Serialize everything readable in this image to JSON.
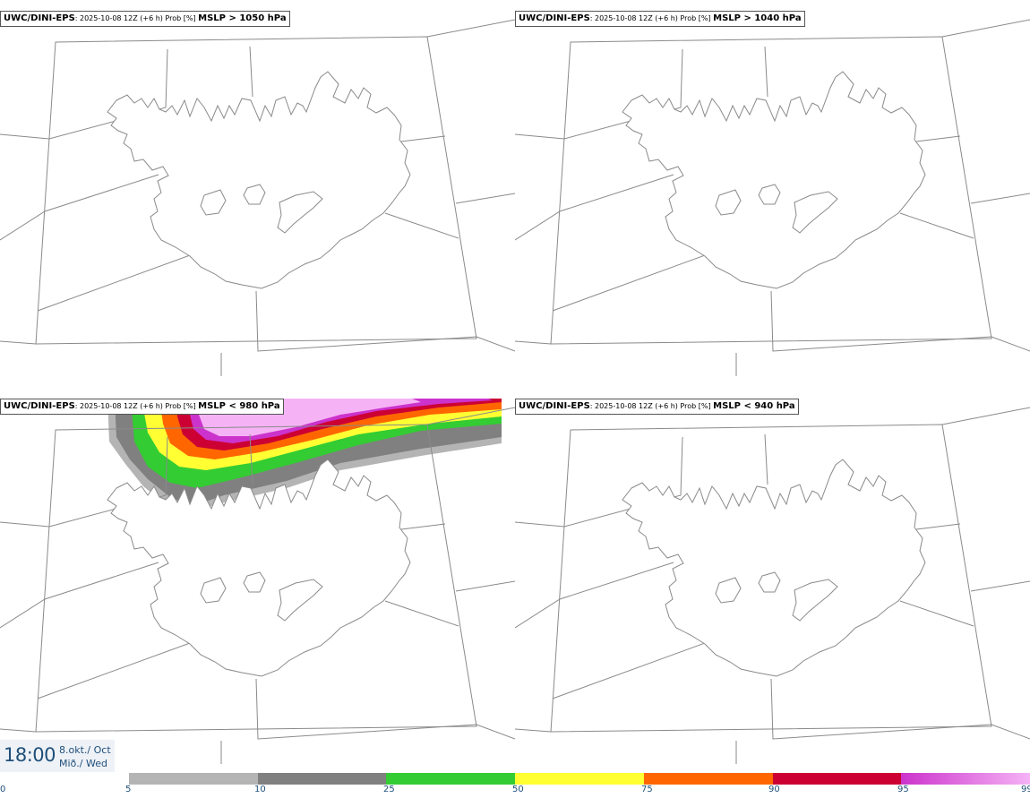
{
  "panels": [
    {
      "model": "UWC/DINI-EPS",
      "run": ": 2025-10-08 12Z (+6 h) Prob [%] ",
      "param": "MSLP > 1050 hPa",
      "colored": false
    },
    {
      "model": "UWC/DINI-EPS",
      "run": ": 2025-10-08 12Z (+6 h) Prob [%] ",
      "param": "MSLP > 1040 hPa",
      "colored": false
    },
    {
      "model": "UWC/DINI-EPS",
      "run": ": 2025-10-08 12Z (+6 h) Prob [%] ",
      "param": "MSLP < 980 hPa",
      "colored": true
    },
    {
      "model": "UWC/DINI-EPS",
      "run": ": 2025-10-08 12Z (+6 h) Prob [%] ",
      "param": "MSLP < 940 hPa",
      "colored": false
    }
  ],
  "time": {
    "clock": "18:00",
    "date_line1": "8.okt./ Oct",
    "date_line2": "Mið./ Wed"
  },
  "legend": {
    "ticks": [
      "0",
      "5",
      "10",
      "25",
      "50",
      "75",
      "90",
      "95",
      "99"
    ],
    "bins": [
      {
        "from": "5",
        "to": "10",
        "color": "#b4b4b4"
      },
      {
        "from": "10",
        "to": "25",
        "color": "#808080"
      },
      {
        "from": "25",
        "to": "50",
        "color": "#33cc33"
      },
      {
        "from": "50",
        "to": "75",
        "color": "#ffff33"
      },
      {
        "from": "75",
        "to": "90",
        "color": "#ff6600"
      },
      {
        "from": "90",
        "to": "95",
        "color": "#cc0033"
      },
      {
        "from": "95",
        "to": "99",
        "color": "#cc33cc",
        "color_end": "#f5b3f5"
      }
    ]
  },
  "colors": {
    "coast": "#8a8a8a",
    "borders": "#8a8a8a",
    "text_accent": "#1f4f7a"
  }
}
